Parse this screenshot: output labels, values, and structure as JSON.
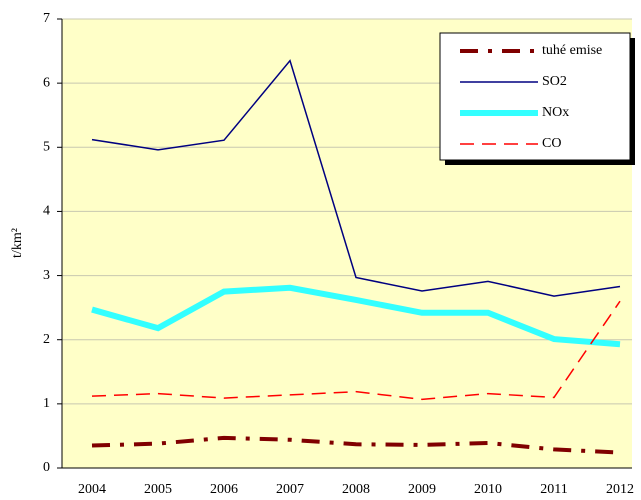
{
  "chart_data": {
    "type": "line",
    "y_label": "t/km²",
    "categories": [
      "2004",
      "2005",
      "2006",
      "2007",
      "2008",
      "2009",
      "2010",
      "2011",
      "2012"
    ],
    "series": [
      {
        "name": "tuhé emise",
        "color": "#800000",
        "style": "dashdot",
        "width": 4,
        "values": [
          0.35,
          0.38,
          0.47,
          0.44,
          0.37,
          0.36,
          0.39,
          0.29,
          0.24
        ]
      },
      {
        "name": "SO2",
        "color": "#000080",
        "style": "solid",
        "width": 1.5,
        "values": [
          5.12,
          4.96,
          5.11,
          6.35,
          2.97,
          2.76,
          2.91,
          2.68,
          2.83
        ]
      },
      {
        "name": "NOx",
        "color": "#33ffff",
        "style": "solid",
        "width": 6,
        "values": [
          2.47,
          2.18,
          2.75,
          2.81,
          2.62,
          2.42,
          2.42,
          2.01,
          1.93
        ]
      },
      {
        "name": "CO",
        "color": "#ff0000",
        "style": "dashed",
        "width": 1.5,
        "values": [
          1.12,
          1.16,
          1.09,
          1.14,
          1.19,
          1.07,
          1.16,
          1.1,
          2.6
        ]
      }
    ],
    "ylim": [
      0,
      7
    ],
    "yticks": [
      0,
      1,
      2,
      3,
      4,
      5,
      6,
      7
    ],
    "grid": true,
    "legend": "upper right"
  }
}
